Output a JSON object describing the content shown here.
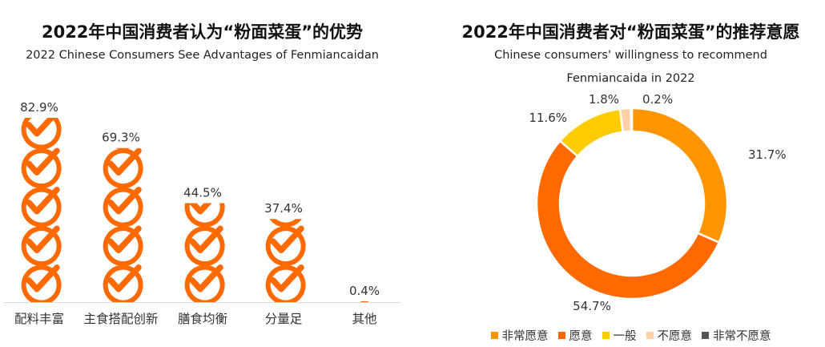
{
  "chart_data": [
    {
      "type": "bar",
      "title": "2022年中国消费者认为“粉面菜蛋”的优势",
      "subtitle": "2022 Chinese Consumers See Advantages of Fenmiancaidan",
      "categories": [
        "配料丰富",
        "主食搭配创新",
        "膳食均衡",
        "分量足",
        "其他"
      ],
      "values": [
        82.9,
        69.3,
        44.5,
        37.4,
        0.4
      ],
      "value_labels": [
        "82.9%",
        "69.3%",
        "44.5%",
        "37.4%",
        "0.4%"
      ],
      "unit": "%",
      "ylim": [
        0,
        100
      ],
      "bar_style": "stacked check-mark icons",
      "color": "#FF6A00",
      "grid": false
    },
    {
      "type": "pie",
      "style": "donut",
      "title": "2022年中国消费者对“粉面菜蛋”的推荐意愿",
      "subtitle_lines": [
        "Chinese consumers' willingness to recommend",
        "Fenmiancaida in 2022"
      ],
      "labels": [
        "非常愿意",
        "愿意",
        "一般",
        "不愿意",
        "非常不愿意"
      ],
      "values": [
        31.7,
        54.7,
        11.6,
        1.8,
        0.2
      ],
      "value_labels": [
        "31.7%",
        "54.7%",
        "11.6%",
        "1.8%",
        "0.2%"
      ],
      "colors": [
        "#FF9500",
        "#FF6A00",
        "#FFCC00",
        "#FDD0A8",
        "#555555"
      ],
      "legend_position": "bottom"
    }
  ]
}
